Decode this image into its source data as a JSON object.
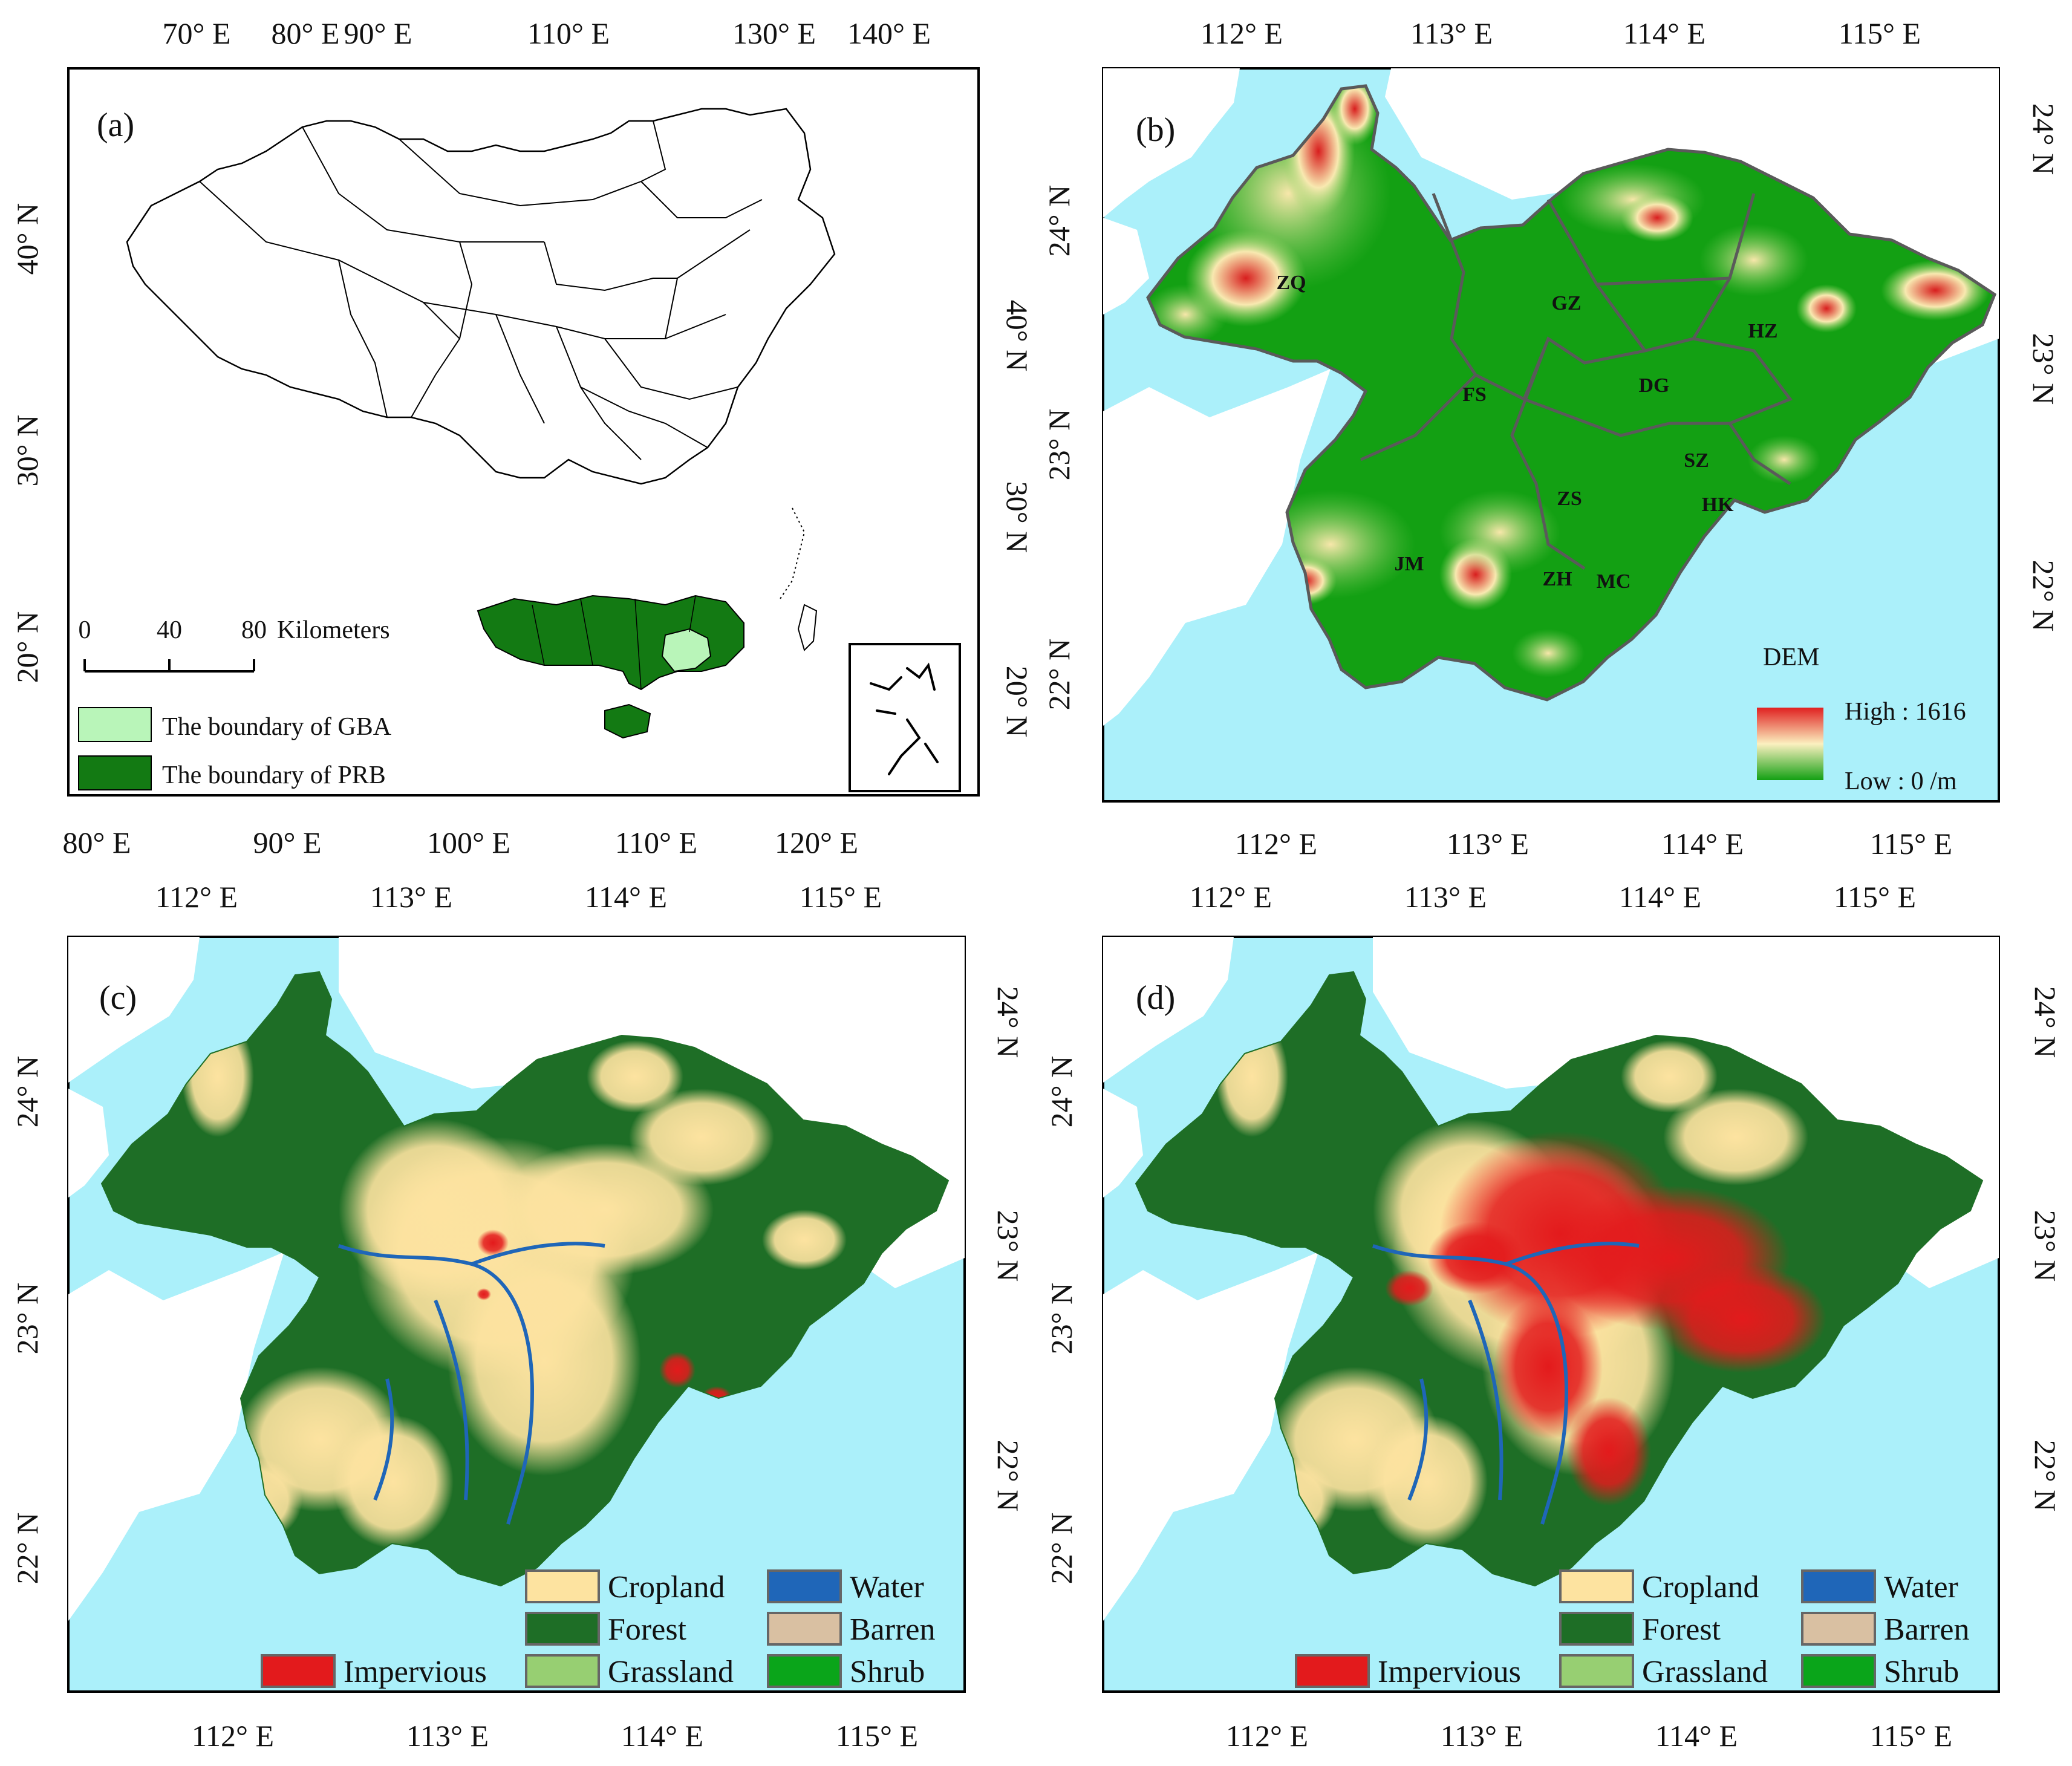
{
  "colors": {
    "sea": "#abf0fa",
    "forest": "#1e6e26",
    "cropland": "#fde3a0",
    "impervious": "#e31a1c",
    "water": "#1f66b8",
    "barren": "#d9c0a2",
    "grassland": "#97cf72",
    "shrub": "#0aa51a",
    "gba_fill": "#b9f5b9",
    "prb_fill": "#137a13",
    "dem_low": "#13a013",
    "dem_mid": "#fbf0bf",
    "dem_high": "#e02020",
    "boundary": "#5a5a5a"
  },
  "panels": {
    "a": {
      "label": "(a)",
      "top_ticks": [
        "70° E",
        "80° E",
        "90° E",
        "110° E",
        "130° E",
        "140° E"
      ],
      "bottom_ticks": [
        "80° E",
        "90° E",
        "100° E",
        "110° E",
        "120° E"
      ],
      "left_ticks": [
        "40° N",
        "30° N",
        "20° N"
      ],
      "right_ticks": [
        "40° N",
        "30° N",
        "20° N"
      ],
      "scale_bar": {
        "ticks": [
          "0",
          "40",
          "80"
        ],
        "unit": "Kilometers"
      },
      "legend": [
        {
          "label": "The boundary of GBA",
          "color_key": "gba_fill"
        },
        {
          "label": "The boundary of PRB",
          "color_key": "prb_fill"
        }
      ]
    },
    "b": {
      "label": "(b)",
      "top_ticks": [
        "112° E",
        "113° E",
        "114° E",
        "115° E"
      ],
      "bottom_ticks": [
        "112° E",
        "113° E",
        "114° E",
        "115° E"
      ],
      "left_ticks": [
        "24° N",
        "23° N",
        "22° N"
      ],
      "right_ticks": [
        "24° N",
        "23° N",
        "22° N"
      ],
      "cities": [
        "ZQ",
        "GZ",
        "HZ",
        "FS",
        "DG",
        "SZ",
        "ZS",
        "HK",
        "JM",
        "ZH",
        "MC"
      ],
      "legend": {
        "title": "DEM",
        "high": "High : 1616",
        "low": "Low : 0 /m"
      }
    },
    "c": {
      "label": "(c)",
      "top_ticks": [
        "112° E",
        "113° E",
        "114° E",
        "115° E"
      ],
      "bottom_ticks": [
        "112° E",
        "113° E",
        "114° E",
        "115° E"
      ],
      "left_ticks": [
        "24° N",
        "23° N",
        "22° N"
      ],
      "right_ticks": [
        "24° N",
        "23° N",
        "22° N"
      ]
    },
    "d": {
      "label": "(d)",
      "top_ticks": [
        "112° E",
        "113° E",
        "114° E",
        "115° E"
      ],
      "bottom_ticks": [
        "112° E",
        "113° E",
        "114° E",
        "115° E"
      ],
      "left_ticks": [
        "24° N",
        "23° N",
        "22° N"
      ],
      "right_ticks": [
        "24° N",
        "23° N",
        "22° N"
      ]
    }
  },
  "landcover_legend": [
    {
      "label": "Cropland",
      "color_key": "cropland"
    },
    {
      "label": "Forest",
      "color_key": "forest"
    },
    {
      "label": "Impervious",
      "color_key": "impervious"
    },
    {
      "label": "Grassland",
      "color_key": "grassland"
    },
    {
      "label": "Water",
      "color_key": "water"
    },
    {
      "label": "Barren",
      "color_key": "barren"
    },
    {
      "label": "Shrub",
      "color_key": "shrub"
    }
  ]
}
